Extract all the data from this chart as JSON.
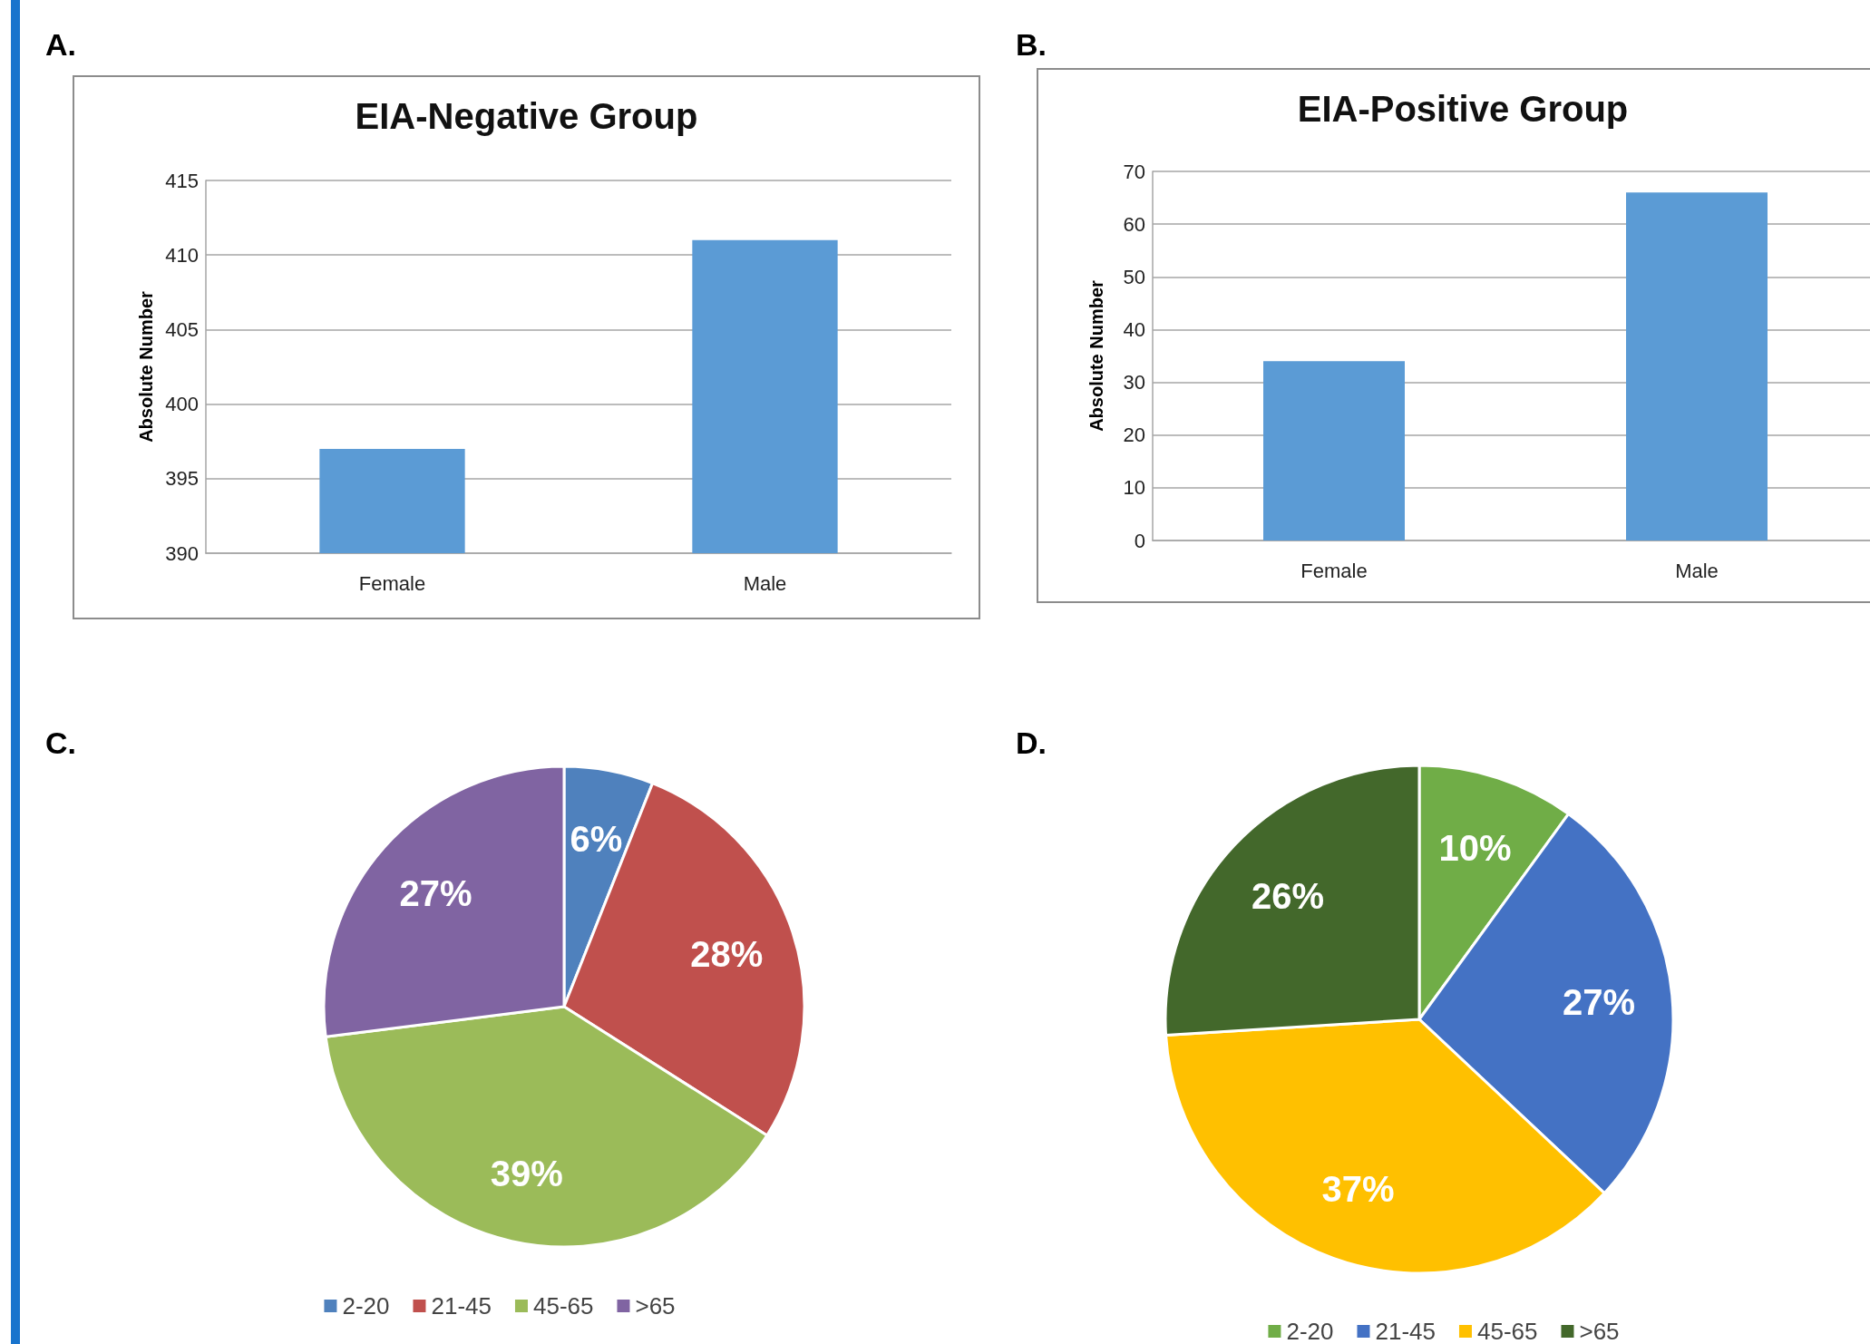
{
  "chart_data": [
    {
      "type": "bar",
      "annotations": [
        "A."
      ],
      "title": "EIA-Negative Group",
      "ylabel": "Absolute Number",
      "categories": [
        "Female",
        "Male"
      ],
      "values": [
        397,
        411
      ],
      "color": "#5b9bd5",
      "ylim": [
        390,
        415
      ],
      "yticks": [
        390,
        395,
        400,
        405,
        410,
        415
      ],
      "grid": "y"
    },
    {
      "type": "bar",
      "annotations": [
        "B."
      ],
      "title": "EIA-Positive Group",
      "ylabel": "Absolute Number",
      "categories": [
        "Female",
        "Male"
      ],
      "values": [
        34,
        66
      ],
      "color": "#5b9bd5",
      "ylim": [
        0,
        70
      ],
      "yticks": [
        0,
        10,
        20,
        30,
        40,
        50,
        60,
        70
      ],
      "grid": "y"
    },
    {
      "type": "pie",
      "annotations": [
        "C."
      ],
      "categories": [
        "2-20",
        "21-45",
        "45-65",
        ">65"
      ],
      "values": [
        6,
        28,
        39,
        27
      ],
      "colors": [
        "#4f81bd",
        "#c0504d",
        "#9bbb59",
        "#8064a2"
      ],
      "value_labels": [
        "6%",
        "28%",
        "39%",
        "27%"
      ],
      "legend": "bottom"
    },
    {
      "type": "pie",
      "annotations": [
        "D."
      ],
      "categories": [
        "2-20",
        "21-45",
        "45-65",
        ">65"
      ],
      "values": [
        10,
        27,
        37,
        26
      ],
      "colors": [
        "#70ad47",
        "#4472c4",
        "#ffc000",
        "#43682b"
      ],
      "value_labels": [
        "10%",
        "27%",
        "37%",
        "26%"
      ],
      "legend": "bottom"
    }
  ]
}
